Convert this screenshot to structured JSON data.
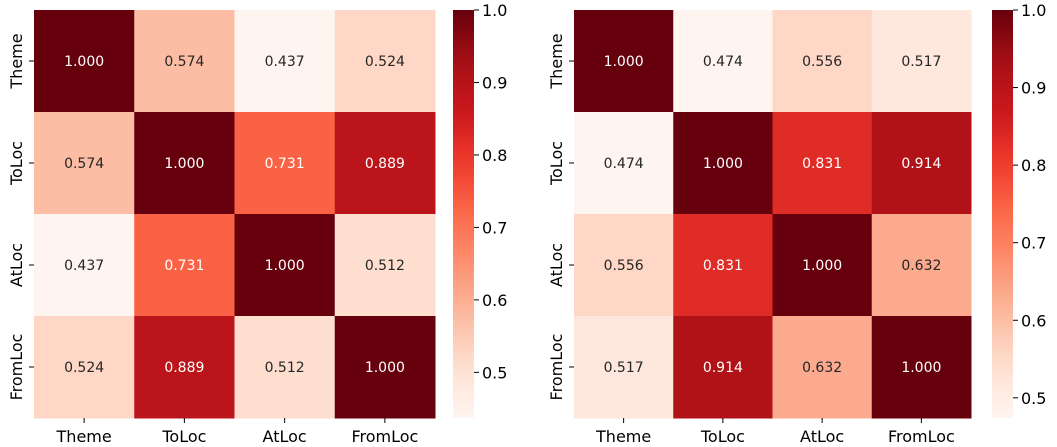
{
  "chart_data": [
    {
      "type": "heatmap",
      "title": "",
      "xlabel": "",
      "ylabel": "",
      "x_categories": [
        "Theme",
        "ToLoc",
        "AtLoc",
        "FromLoc"
      ],
      "y_categories": [
        "Theme",
        "ToLoc",
        "AtLoc",
        "FromLoc"
      ],
      "values": [
        [
          1.0,
          0.574,
          0.437,
          0.524
        ],
        [
          0.574,
          1.0,
          0.731,
          0.889
        ],
        [
          0.437,
          0.731,
          1.0,
          0.512
        ],
        [
          0.524,
          0.889,
          0.512,
          1.0
        ]
      ],
      "value_labels": [
        [
          "1.000",
          "0.574",
          "0.437",
          "0.524"
        ],
        [
          "0.574",
          "1.000",
          "0.731",
          "0.889"
        ],
        [
          "0.437",
          "0.731",
          "1.000",
          "0.512"
        ],
        [
          "0.524",
          "0.889",
          "0.512",
          "1.000"
        ]
      ],
      "colormap": "Reds",
      "colorbar_range": [
        0.437,
        1.0
      ],
      "colorbar_ticks": [
        0.5,
        0.6,
        0.7,
        0.8,
        0.9,
        1.0
      ],
      "colorbar_tick_labels": [
        "0.5",
        "0.6",
        "0.7",
        "0.8",
        "0.9",
        "1.0"
      ]
    },
    {
      "type": "heatmap",
      "title": "",
      "xlabel": "",
      "ylabel": "",
      "x_categories": [
        "Theme",
        "ToLoc",
        "AtLoc",
        "FromLoc"
      ],
      "y_categories": [
        "Theme",
        "ToLoc",
        "AtLoc",
        "FromLoc"
      ],
      "values": [
        [
          1.0,
          0.474,
          0.556,
          0.517
        ],
        [
          0.474,
          1.0,
          0.831,
          0.914
        ],
        [
          0.556,
          0.831,
          1.0,
          0.632
        ],
        [
          0.517,
          0.914,
          0.632,
          1.0
        ]
      ],
      "value_labels": [
        [
          "1.000",
          "0.474",
          "0.556",
          "0.517"
        ],
        [
          "0.474",
          "1.000",
          "0.831",
          "0.914"
        ],
        [
          "0.556",
          "0.831",
          "1.000",
          "0.632"
        ],
        [
          "0.517",
          "0.914",
          "0.632",
          "1.000"
        ]
      ],
      "colormap": "Reds",
      "colorbar_range": [
        0.474,
        1.0
      ],
      "colorbar_ticks": [
        0.5,
        0.6,
        0.7,
        0.8,
        0.9,
        1.0
      ],
      "colorbar_tick_labels": [
        "0.5",
        "0.6",
        "0.7",
        "0.8",
        "0.9",
        "1.0"
      ]
    }
  ]
}
